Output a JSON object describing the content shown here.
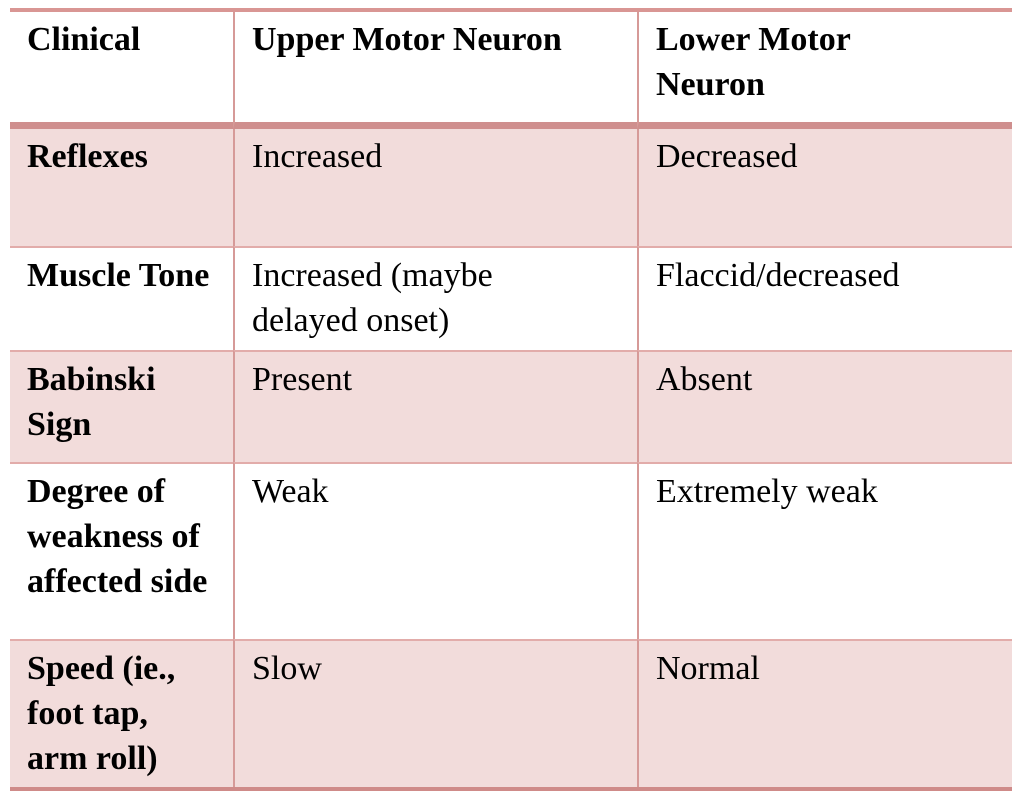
{
  "table": {
    "title_semantic": "Upper vs Lower Motor Neuron clinical comparison",
    "columns": [
      "Clinical",
      "Upper Motor Neuron",
      "Lower Motor Neuron"
    ],
    "rows": [
      {
        "cells": [
          "Reflexes",
          "Increased",
          "Decreased"
        ]
      },
      {
        "cells": [
          "Muscle Tone",
          "Increased (maybe delayed onset)",
          "Flaccid/decreased"
        ]
      },
      {
        "cells": [
          "Babinski Sign",
          "Present",
          "Absent"
        ]
      },
      {
        "cells": [
          "Degree of weakness of affected side",
          "Weak",
          "Extremely weak"
        ]
      },
      {
        "cells": [
          "Speed (ie., foot tap, arm roll)",
          "Slow",
          "Normal"
        ]
      }
    ]
  },
  "colors": {
    "banded_row_fill": "#f2dcdb",
    "top_border": "#d99694",
    "header_separator": "#cf8f8e",
    "bottom_border": "#cf8b89",
    "column_line": "#d69a98",
    "row_line": "#e2acaa",
    "text": "#000000",
    "page_background": "#ffffff"
  }
}
